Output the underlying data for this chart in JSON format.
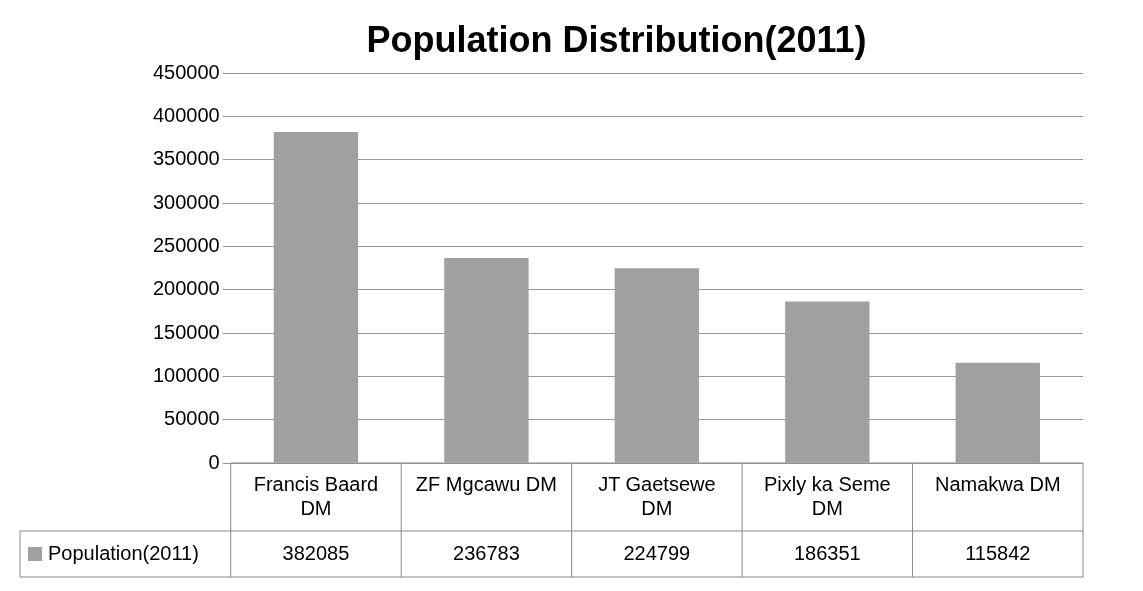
{
  "chart_data": {
    "type": "bar",
    "title": "Population Distribution(2011)",
    "categories": [
      "Francis Baard DM",
      "ZF Mgcawu DM",
      "JT Gaetsewe DM",
      "Pixly ka Seme DM",
      "Namakwa DM"
    ],
    "series": [
      {
        "name": "Population(2011)",
        "color": "#a0a0a0",
        "values": [
          382085,
          236783,
          224799,
          186351,
          115842
        ]
      }
    ],
    "ylim": [
      0,
      450000
    ],
    "yticks": [
      0,
      50000,
      100000,
      150000,
      200000,
      250000,
      300000,
      350000,
      400000,
      450000
    ],
    "grid": "y",
    "legend": "bottom",
    "data_labels": true
  }
}
